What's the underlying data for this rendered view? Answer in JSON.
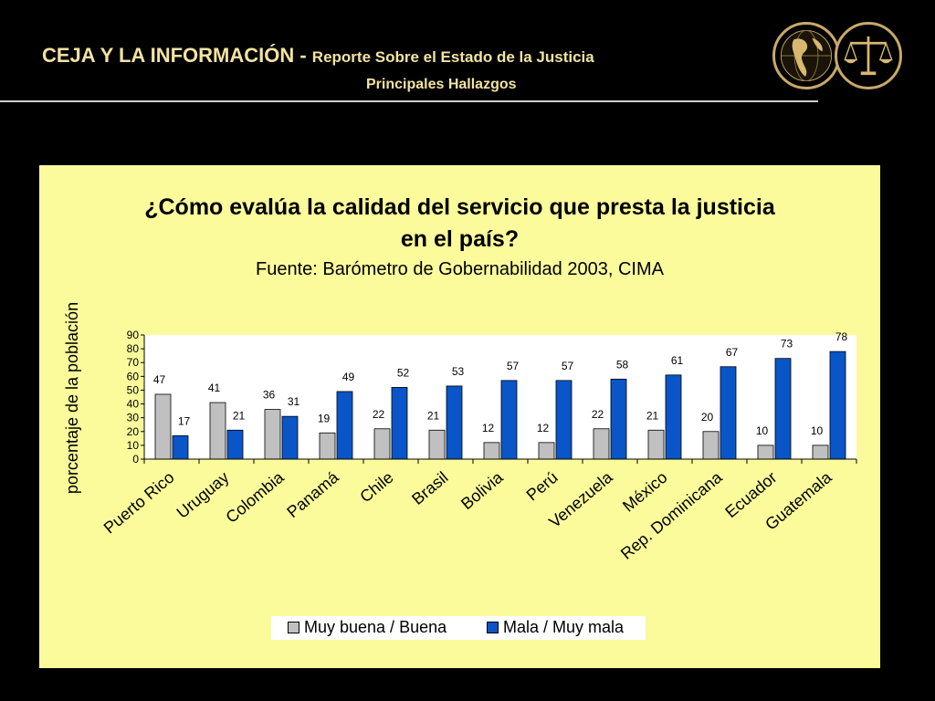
{
  "header": {
    "title_main": "CEJA Y LA INFORMACIÓN - ",
    "title_sub": "Reporte Sobre el Estado de la Justicia",
    "subtitle": "Principales Hallazgos"
  },
  "colors": {
    "series1": "#c0c0c0",
    "series2": "#0a55c8",
    "panel": "#fbfb9c",
    "header_text": "#f3e3a0"
  },
  "chart_data": {
    "type": "bar",
    "title_line1": "¿Cómo evalúa la calidad del servicio que presta la justicia",
    "title_line2": "en el país?",
    "subtitle": "Fuente: Barómetro de Gobernabilidad 2003, CIMA",
    "ylabel": "porcentaje de la población",
    "ylim": [
      0,
      90
    ],
    "yticks": [
      "0",
      "10",
      "20",
      "30",
      "40",
      "50",
      "60",
      "70",
      "80",
      "90"
    ],
    "categories": [
      "Puerto Rico",
      "Uruguay",
      "Colombia",
      "Panamá",
      "Chile",
      "Brasil",
      "Bolivia",
      "Perú",
      "Venezuela",
      "México",
      "Rep. Dominicana",
      "Ecuador",
      "Guatemala"
    ],
    "series": [
      {
        "name": "Muy buena / Buena",
        "values": [
          47,
          41,
          36,
          19,
          22,
          21,
          12,
          12,
          22,
          21,
          20,
          10,
          10
        ]
      },
      {
        "name": "Mala / Muy mala",
        "values": [
          17,
          21,
          31,
          49,
          52,
          53,
          57,
          57,
          58,
          61,
          67,
          73,
          78
        ]
      }
    ],
    "legend_position": "bottom"
  }
}
